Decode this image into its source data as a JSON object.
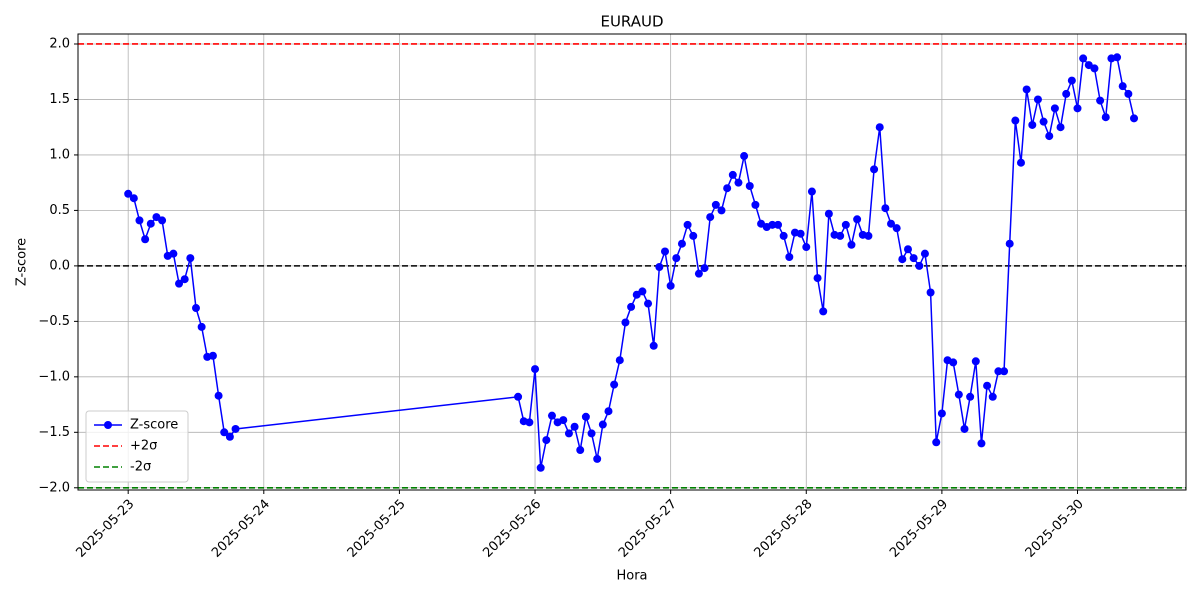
{
  "chart_data": {
    "type": "line",
    "title": "EURAUD",
    "xlabel": "Hora",
    "ylabel": "Z-score",
    "grid": true,
    "legend": "lower left",
    "xlim": [
      20230.63,
      20238.8
    ],
    "xticks": [
      {
        "value": 20231,
        "label": "2025-05-23"
      },
      {
        "value": 20232,
        "label": "2025-05-24"
      },
      {
        "value": 20233,
        "label": "2025-05-25"
      },
      {
        "value": 20234,
        "label": "2025-05-26"
      },
      {
        "value": 20235,
        "label": "2025-05-27"
      },
      {
        "value": 20236,
        "label": "2025-05-28"
      },
      {
        "value": 20237,
        "label": "2025-05-29"
      },
      {
        "value": 20238,
        "label": "2025-05-30"
      }
    ],
    "ylim": [
      -2.02,
      2.09
    ],
    "yticks": [
      {
        "value": -2,
        "label": "−2.0"
      },
      {
        "value": -1.5,
        "label": "−1.5"
      },
      {
        "value": -1,
        "label": "−1.0"
      },
      {
        "value": -0.5,
        "label": "−0.5"
      },
      {
        "value": 0,
        "label": "0.0"
      },
      {
        "value": 0.5,
        "label": "0.5"
      },
      {
        "value": 1,
        "label": "1.0"
      },
      {
        "value": 1.5,
        "label": "1.5"
      },
      {
        "value": 2,
        "label": "2.0"
      }
    ],
    "hlines": [
      {
        "name": "+2σ",
        "value": 2,
        "color": "#ff0000"
      },
      {
        "name": "-2σ",
        "value": -2,
        "color": "#008000"
      },
      {
        "value": 0,
        "color": "#000000"
      }
    ],
    "series": [
      {
        "name": "Z-score",
        "color": "#0000ff",
        "x": [
          20231,
          20231.0417,
          20231.0833,
          20231.125,
          20231.1667,
          20231.2083,
          20231.25,
          20231.2917,
          20231.3333,
          20231.375,
          20231.4167,
          20231.4583,
          20231.5,
          20231.5417,
          20231.5833,
          20231.625,
          20231.6667,
          20231.7083,
          20231.75,
          20231.7917,
          20233.875,
          20233.9167,
          20233.9583,
          20234,
          20234.0417,
          20234.0833,
          20234.125,
          20234.1667,
          20234.2083,
          20234.25,
          20234.2917,
          20234.3333,
          20234.375,
          20234.4167,
          20234.4583,
          20234.5,
          20234.5417,
          20234.5833,
          20234.625,
          20234.6667,
          20234.7083,
          20234.75,
          20234.7917,
          20234.8333,
          20234.875,
          20234.9167,
          20234.9583,
          20235,
          20235.0417,
          20235.0833,
          20235.125,
          20235.1667,
          20235.2083,
          20235.25,
          20235.2917,
          20235.3333,
          20235.375,
          20235.4167,
          20235.4583,
          20235.5,
          20235.5417,
          20235.5833,
          20235.625,
          20235.6667,
          20235.7083,
          20235.75,
          20235.7917,
          20235.8333,
          20235.875,
          20235.9167,
          20235.9583,
          20236,
          20236.0417,
          20236.0833,
          20236.125,
          20236.1667,
          20236.2083,
          20236.25,
          20236.2917,
          20236.3333,
          20236.375,
          20236.4167,
          20236.4583,
          20236.5,
          20236.5417,
          20236.5833,
          20236.625,
          20236.6667,
          20236.7083,
          20236.75,
          20236.7917,
          20236.8333,
          20236.875,
          20236.9167,
          20236.9583,
          20237,
          20237.0417,
          20237.0833,
          20237.125,
          20237.1667,
          20237.2083,
          20237.25,
          20237.2917,
          20237.3333,
          20237.375,
          20237.4167,
          20237.4583,
          20237.5,
          20237.5417,
          20237.5833,
          20237.625,
          20237.6667,
          20237.7083,
          20237.75,
          20237.7917,
          20237.8333,
          20237.875,
          20237.9167,
          20237.9583,
          20238,
          20238.0417,
          20238.0833,
          20238.125,
          20238.1667,
          20238.2083,
          20238.25,
          20238.2917,
          20238.3333,
          20238.375,
          20238.4167
        ],
        "values": [
          0.65,
          0.61,
          0.41,
          0.24,
          0.38,
          0.44,
          0.41,
          0.09,
          0.11,
          -0.16,
          -0.12,
          0.07,
          -0.38,
          -0.55,
          -0.82,
          -0.81,
          -1.17,
          -1.5,
          -1.54,
          -1.47,
          -1.18,
          -1.4,
          -1.41,
          -0.93,
          -1.82,
          -1.57,
          -1.35,
          -1.41,
          -1.39,
          -1.51,
          -1.45,
          -1.66,
          -1.36,
          -1.51,
          -1.74,
          -1.43,
          -1.31,
          -1.07,
          -0.85,
          -0.51,
          -0.37,
          -0.26,
          -0.23,
          -0.34,
          -0.72,
          -0.01,
          0.13,
          -0.18,
          0.07,
          0.2,
          0.37,
          0.27,
          -0.07,
          -0.02,
          0.44,
          0.55,
          0.5,
          0.7,
          0.82,
          0.75,
          0.99,
          0.72,
          0.55,
          0.38,
          0.35,
          0.37,
          0.37,
          0.27,
          0.08,
          0.3,
          0.29,
          0.17,
          0.67,
          -0.11,
          -0.41,
          0.47,
          0.28,
          0.27,
          0.37,
          0.19,
          0.42,
          0.28,
          0.27,
          0.87,
          1.25,
          0.52,
          0.38,
          0.34,
          0.06,
          0.15,
          0.07,
          0.0,
          0.11,
          -0.24,
          -1.59,
          -1.33,
          -0.85,
          -0.87,
          -1.16,
          -1.47,
          -1.18,
          -0.86,
          -1.6,
          -1.08,
          -1.18,
          -0.95,
          -0.95,
          0.2,
          1.31,
          0.93,
          1.59,
          1.27,
          1.5,
          1.3,
          1.17,
          1.42,
          1.25,
          1.55,
          1.67,
          1.42,
          1.87,
          1.81,
          1.78,
          1.49,
          1.34,
          1.87,
          1.88,
          1.62,
          1.55,
          1.33
        ]
      }
    ]
  }
}
